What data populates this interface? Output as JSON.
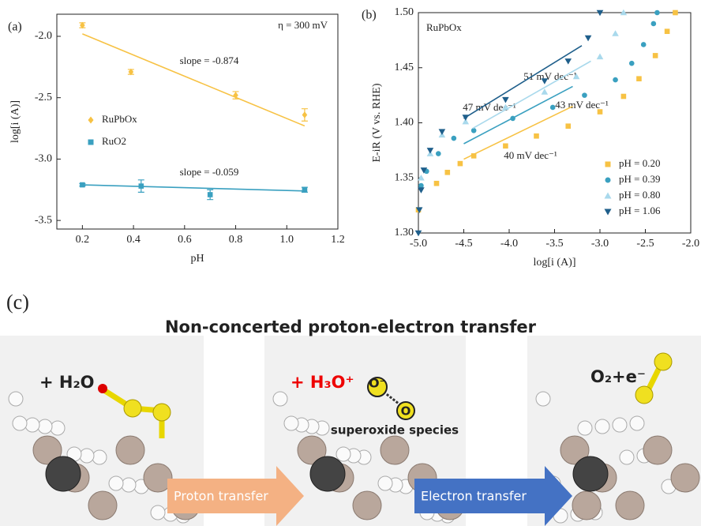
{
  "chart_data": [
    {
      "type": "scatter",
      "panel": "(a)",
      "xlabel": "pH",
      "ylabel": "log[i (A)]",
      "xlim": [
        0.1,
        1.2
      ],
      "xticks": [
        0.2,
        0.4,
        0.6,
        0.8,
        {
          "value": 1,
          "label": "1.0"
        },
        1.2
      ],
      "ylim": [
        -3.57,
        -1.82
      ],
      "yticks": [
        -3.5,
        {
          "value": -3,
          "label": "-3.0"
        },
        -2.5,
        {
          "value": -2,
          "label": "-2.0"
        }
      ],
      "legend": "center-left",
      "grid": false,
      "annotations": [
        {
          "text": "η = 300 mV",
          "color": "#222222"
        },
        {
          "text": "slope = -0.874",
          "color": "#f7c244"
        },
        {
          "text": "slope = -0.059",
          "color": "#3aa0c0"
        }
      ],
      "series": [
        {
          "name": "RuPbOx",
          "color": "#f7c244",
          "marker": "diamond",
          "x": [
            0.2,
            0.39,
            0.8,
            1.07
          ],
          "values": [
            -1.91,
            -2.29,
            -2.48,
            -2.64
          ],
          "errors": [
            0.02,
            0.02,
            0.03,
            0.05
          ],
          "fit": {
            "x": [
              0.2,
              1.07
            ],
            "values": [
              -1.98,
              -2.73
            ]
          }
        },
        {
          "name": "RuO2",
          "color": "#3aa0c0",
          "marker": "square",
          "x": [
            0.2,
            0.43,
            0.7,
            1.07
          ],
          "values": [
            -3.21,
            -3.22,
            -3.29,
            -3.25
          ],
          "errors": [
            0.01,
            0.05,
            0.04,
            0.02
          ],
          "fit": {
            "x": [
              0.2,
              1.07
            ],
            "values": [
              -3.21,
              -3.26
            ]
          }
        }
      ]
    },
    {
      "type": "scatter",
      "panel": "(b)",
      "xlabel": "log[i (A)]",
      "ylabel": "E-iR (V vs. RHE)",
      "xlim": [
        -5,
        -2
      ],
      "xticks": [
        {
          "value": -5,
          "label": "-5.0"
        },
        -4.5,
        {
          "value": -4,
          "label": "-4.0"
        },
        -3.5,
        {
          "value": -3,
          "label": "-3.0"
        },
        -2.5,
        {
          "value": -2,
          "label": "-2.0"
        }
      ],
      "ylim": [
        1.3,
        1.5
      ],
      "yticks": [
        {
          "value": 1.3,
          "label": "1.30"
        },
        1.35,
        {
          "value": 1.4,
          "label": "1.40"
        },
        1.45,
        {
          "value": 1.5,
          "label": "1.50"
        }
      ],
      "legend": "lower-right",
      "grid": false,
      "annotations": [
        {
          "text": "RuPbOx",
          "color": "#222222"
        },
        {
          "text": "51 mV dec⁻¹",
          "color": "#1f5f8b"
        },
        {
          "text": "47 mV dec⁻¹",
          "color": "#a9d9ec"
        },
        {
          "text": "43 mV dec⁻¹",
          "color": "#3aa0c0"
        },
        {
          "text": "40 mV dec⁻¹",
          "color": "#f7c244"
        }
      ],
      "series": [
        {
          "name": "pH = 0.20",
          "color": "#f7c244",
          "marker": "square",
          "x": [
            -5.0,
            -4.8,
            -4.68,
            -4.54,
            -4.39,
            -4.04,
            -3.7,
            -3.35,
            -3.0,
            -2.74,
            -2.57,
            -2.39,
            -2.26,
            -2.17
          ],
          "values": [
            1.321,
            1.345,
            1.355,
            1.363,
            1.37,
            1.379,
            1.388,
            1.397,
            1.41,
            1.424,
            1.44,
            1.461,
            1.483,
            1.5
          ],
          "fit": {
            "x": [
              -4.5,
              -3.3
            ],
            "values": [
              1.367,
              1.415
            ]
          }
        },
        {
          "name": "pH = 0.39",
          "color": "#3aa0c0",
          "marker": "circle",
          "x": [
            -4.97,
            -4.91,
            -4.78,
            -4.61,
            -4.39,
            -3.96,
            -3.52,
            -3.17,
            -2.83,
            -2.65,
            -2.52,
            -2.41,
            -2.37
          ],
          "values": [
            1.343,
            1.356,
            1.372,
            1.386,
            1.393,
            1.404,
            1.414,
            1.425,
            1.439,
            1.454,
            1.471,
            1.49,
            1.5
          ],
          "fit": {
            "x": [
              -4.5,
              -3.3
            ],
            "values": [
              1.381,
              1.433
            ]
          }
        },
        {
          "name": "pH = 0.80",
          "color": "#a9d9ec",
          "marker": "triangle",
          "x": [
            -4.97,
            -4.87,
            -4.74,
            -4.48,
            -4.04,
            -3.61,
            -3.26,
            -3.0,
            -2.83,
            -2.74
          ],
          "values": [
            1.35,
            1.372,
            1.389,
            1.401,
            1.414,
            1.428,
            1.442,
            1.46,
            1.481,
            1.5
          ],
          "fit": {
            "x": [
              -4.4,
              -3.1
            ],
            "values": [
              1.395,
              1.456
            ]
          }
        },
        {
          "name": "pH = 1.06",
          "color": "#1f5f8b",
          "marker": "triangle-down",
          "x": [
            -5.0,
            -4.99,
            -4.97,
            -4.94,
            -4.87,
            -4.74,
            -4.48,
            -4.04,
            -3.61,
            -3.35,
            -3.13,
            -3.0
          ],
          "values": [
            1.3,
            1.321,
            1.339,
            1.357,
            1.375,
            1.392,
            1.405,
            1.421,
            1.438,
            1.456,
            1.477,
            1.5
          ],
          "fit": {
            "x": [
              -4.5,
              -3.2
            ],
            "values": [
              1.404,
              1.47
            ]
          }
        }
      ]
    }
  ],
  "diagram": {
    "label": "(c)",
    "title": "Non-concerted proton-electron transfer",
    "captions": [
      "+ H₂O",
      "+ H₃O⁺",
      "O₂+e⁻"
    ],
    "species": [
      "O⁻",
      "O",
      "superoxide species"
    ],
    "arrows": [
      "Proton transfer",
      "Electron transfer"
    ]
  }
}
